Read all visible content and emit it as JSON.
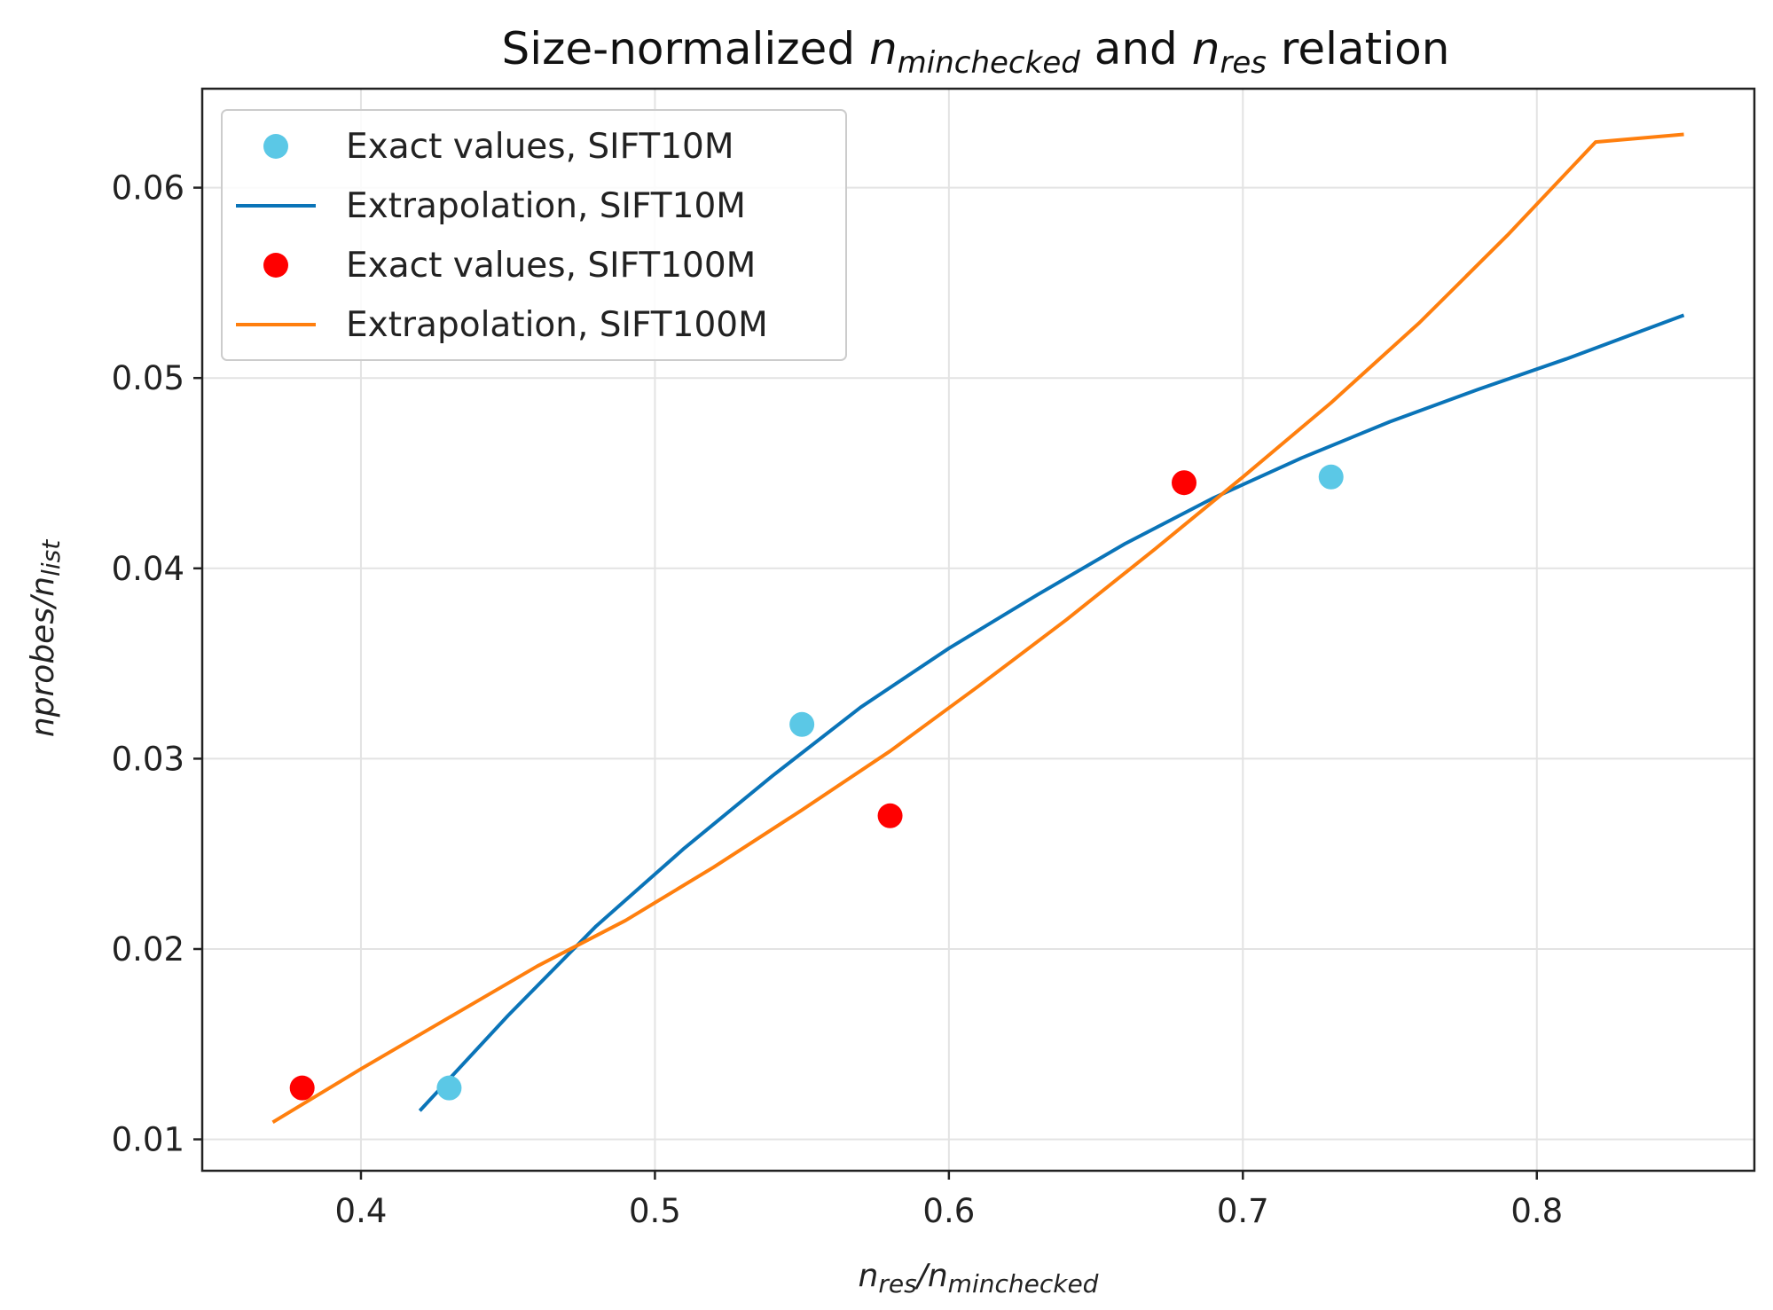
{
  "chart_data": {
    "type": "scatter",
    "title": {
      "prefix": "Size-normalized ",
      "var1_base": "n",
      "var1_sub": "minchecked",
      "middle": " and ",
      "var2_base": "n",
      "var2_sub": "res",
      "suffix": " relation"
    },
    "xlabel": {
      "num_base": "n",
      "num_sub": "res",
      "sep": "/",
      "den_base": "n",
      "den_sub": "minchecked"
    },
    "ylabel": {
      "num": "nprobes",
      "sep": "/",
      "den_base": "n",
      "den_sub": "list"
    },
    "xlim": [
      0.346,
      0.874
    ],
    "ylim": [
      0.00835,
      0.0652
    ],
    "xticks": [
      0.4,
      0.5,
      0.6,
      0.7,
      0.8
    ],
    "xtick_labels": [
      "0.4",
      "0.5",
      "0.6",
      "0.7",
      "0.8"
    ],
    "yticks": [
      0.01,
      0.02,
      0.03,
      0.04,
      0.05,
      0.06
    ],
    "ytick_labels": [
      "0.01",
      "0.02",
      "0.03",
      "0.04",
      "0.05",
      "0.06"
    ],
    "grid": true,
    "legend_position": "top-left",
    "series": [
      {
        "name": "Exact values, SIFT10M",
        "kind": "scatter",
        "color": "#5bc8e6",
        "x": [
          0.43,
          0.55,
          0.73
        ],
        "y": [
          0.0127,
          0.0318,
          0.0448
        ]
      },
      {
        "name": "Extrapolation, SIFT10M",
        "kind": "line",
        "color": "#0a74b8",
        "x": [
          0.42,
          0.45,
          0.48,
          0.51,
          0.54,
          0.57,
          0.6,
          0.63,
          0.66,
          0.69,
          0.72,
          0.75,
          0.78,
          0.81,
          0.85
        ],
        "y": [
          0.0115,
          0.0165,
          0.0212,
          0.0253,
          0.0291,
          0.0327,
          0.0358,
          0.0386,
          0.0413,
          0.0437,
          0.0458,
          0.0477,
          0.0494,
          0.051,
          0.0533
        ]
      },
      {
        "name": "Exact values, SIFT100M",
        "kind": "scatter",
        "color": "#ff0000",
        "x": [
          0.38,
          0.58,
          0.68
        ],
        "y": [
          0.0127,
          0.027,
          0.0445
        ]
      },
      {
        "name": "Extrapolation, SIFT100M",
        "kind": "line",
        "color": "#ff7f0e",
        "x": [
          0.37,
          0.4,
          0.43,
          0.46,
          0.49,
          0.52,
          0.55,
          0.58,
          0.61,
          0.64,
          0.67,
          0.7,
          0.73,
          0.76,
          0.79,
          0.82,
          0.85
        ],
        "y": [
          0.0109,
          0.0137,
          0.0164,
          0.0191,
          0.0215,
          0.0243,
          0.0273,
          0.0304,
          0.0338,
          0.0373,
          0.041,
          0.0448,
          0.0487,
          0.0529,
          0.0575,
          0.0624,
          0.0628
        ]
      }
    ]
  }
}
